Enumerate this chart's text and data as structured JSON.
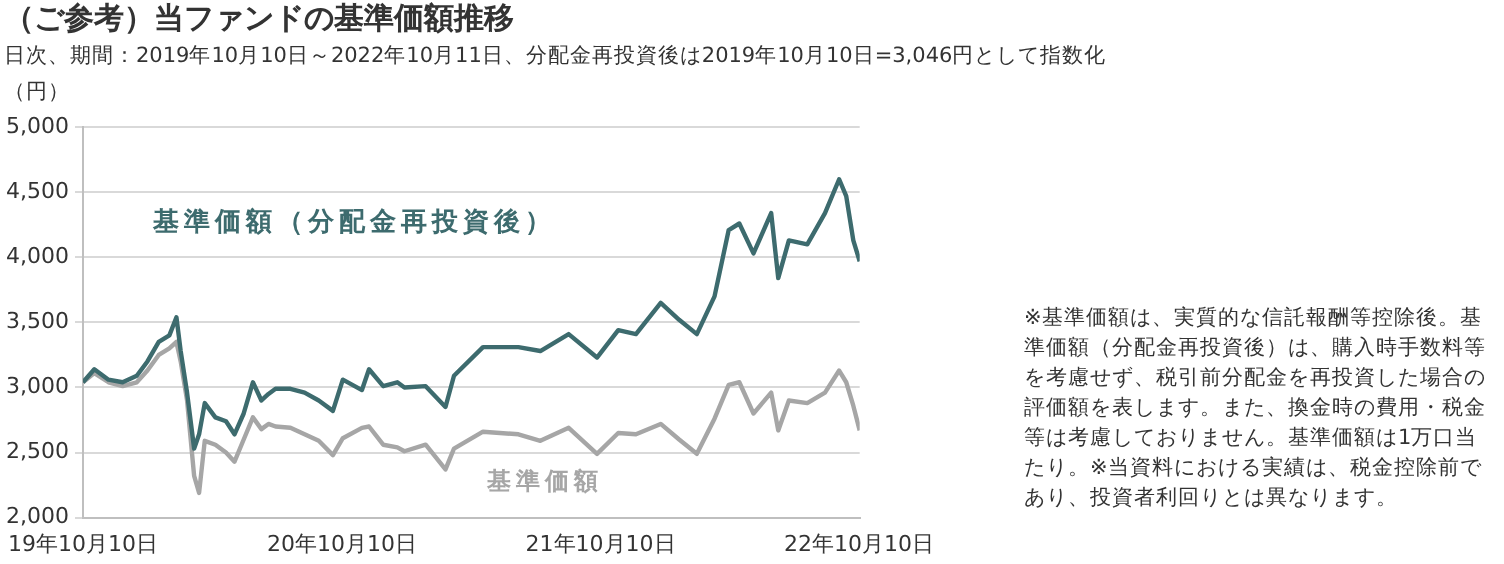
{
  "chart_data": {
    "type": "line",
    "title": "（ご参考）当ファンドの基準価額推移",
    "subtitle": "日次、期間：2019年10月10日～2022年10月11日、分配金再投資後は2019年10月10日=3,046円として指数化",
    "ylabel": "（円）",
    "annotations": [
      "※基準価額は、実質的な信託報酬等控除後。基準価額（分配金再投資後）は、購入時手数料等を考慮せず、税引前分配金を再投資した場合の評価額を表します。また、換金時の費用・税金等は考慮しておりません。基準価額は1万口当たり。※当資料における実績は、税金控除前であり、投資者利回りとは異なります。"
    ],
    "x": [
      "2019-10-10",
      "2019-10-26",
      "2019-11-15",
      "2019-12-05",
      "2019-12-25",
      "2020-01-09",
      "2020-01-25",
      "2020-02-09",
      "2020-02-19",
      "2020-02-25",
      "2020-03-05",
      "2020-03-15",
      "2020-03-22",
      "2020-03-30",
      "2020-04-14",
      "2020-04-29",
      "2020-05-11",
      "2020-05-24",
      "2020-06-06",
      "2020-06-18",
      "2020-06-28",
      "2020-07-08",
      "2020-07-29",
      "2020-08-18",
      "2020-09-07",
      "2020-09-27",
      "2020-10-11",
      "2020-11-07",
      "2020-11-17",
      "2020-12-07",
      "2020-12-27",
      "2021-01-06",
      "2021-02-05",
      "2021-03-05",
      "2021-03-17",
      "2021-04-27",
      "2021-06-16",
      "2021-07-17",
      "2021-08-26",
      "2021-10-05",
      "2021-11-04",
      "2021-11-29",
      "2022-01-03",
      "2022-01-29",
      "2022-02-23",
      "2022-03-20",
      "2022-04-09",
      "2022-04-24",
      "2022-05-14",
      "2022-06-08",
      "2022-06-18",
      "2022-07-03",
      "2022-07-29",
      "2022-08-23",
      "2022-09-12",
      "2022-09-22",
      "2022-10-02",
      "2022-10-11"
    ],
    "series": [
      {
        "name": "基準価額（分配金再投資後）",
        "color": "#3d6b6e",
        "values": [
          3040,
          3140,
          3060,
          3040,
          3090,
          3200,
          3350,
          3400,
          3540,
          3280,
          2960,
          2530,
          2640,
          2880,
          2770,
          2740,
          2640,
          2800,
          3040,
          2900,
          2950,
          2990,
          2990,
          2960,
          2900,
          2820,
          3060,
          2980,
          3140,
          3010,
          3040,
          3000,
          3010,
          2850,
          3090,
          3310,
          3310,
          3280,
          3410,
          3230,
          3440,
          3410,
          3650,
          3520,
          3410,
          3700,
          4210,
          4260,
          4030,
          4340,
          3840,
          4130,
          4100,
          4340,
          4600,
          4470,
          4130,
          3970
        ]
      },
      {
        "name": "基準価額",
        "color": "#a6a6a6",
        "values": [
          3040,
          3110,
          3040,
          3010,
          3040,
          3130,
          3250,
          3300,
          3350,
          3200,
          2900,
          2320,
          2190,
          2590,
          2560,
          2500,
          2430,
          2600,
          2770,
          2680,
          2720,
          2700,
          2690,
          2640,
          2590,
          2480,
          2610,
          2690,
          2700,
          2560,
          2540,
          2510,
          2560,
          2370,
          2530,
          2660,
          2640,
          2590,
          2690,
          2490,
          2650,
          2640,
          2720,
          2600,
          2490,
          2760,
          3020,
          3040,
          2800,
          2960,
          2670,
          2900,
          2880,
          2960,
          3130,
          3040,
          2860,
          2670
        ]
      }
    ],
    "xlim": [
      "2019-10-10",
      "2022-10-11"
    ],
    "xticks": [
      {
        "value": "2019-10-10",
        "label": "19年10月10日"
      },
      {
        "value": "2020-10-10",
        "label": "20年10月10日"
      },
      {
        "value": "2021-10-10",
        "label": "21年10月10日"
      },
      {
        "value": "2022-10-10",
        "label": "22年10月10日"
      }
    ],
    "ylim": [
      2000,
      5000
    ],
    "yticks": [
      {
        "value": 2000,
        "label": "2,000"
      },
      {
        "value": 2500,
        "label": "2,500"
      },
      {
        "value": 3000,
        "label": "3,000"
      },
      {
        "value": 3500,
        "label": "3,500"
      },
      {
        "value": 4000,
        "label": "4,000"
      },
      {
        "value": 4500,
        "label": "4,500"
      },
      {
        "value": 5000,
        "label": "5,000"
      }
    ],
    "grid": "y",
    "legend": false,
    "marker": "none",
    "line_style": "solid"
  }
}
